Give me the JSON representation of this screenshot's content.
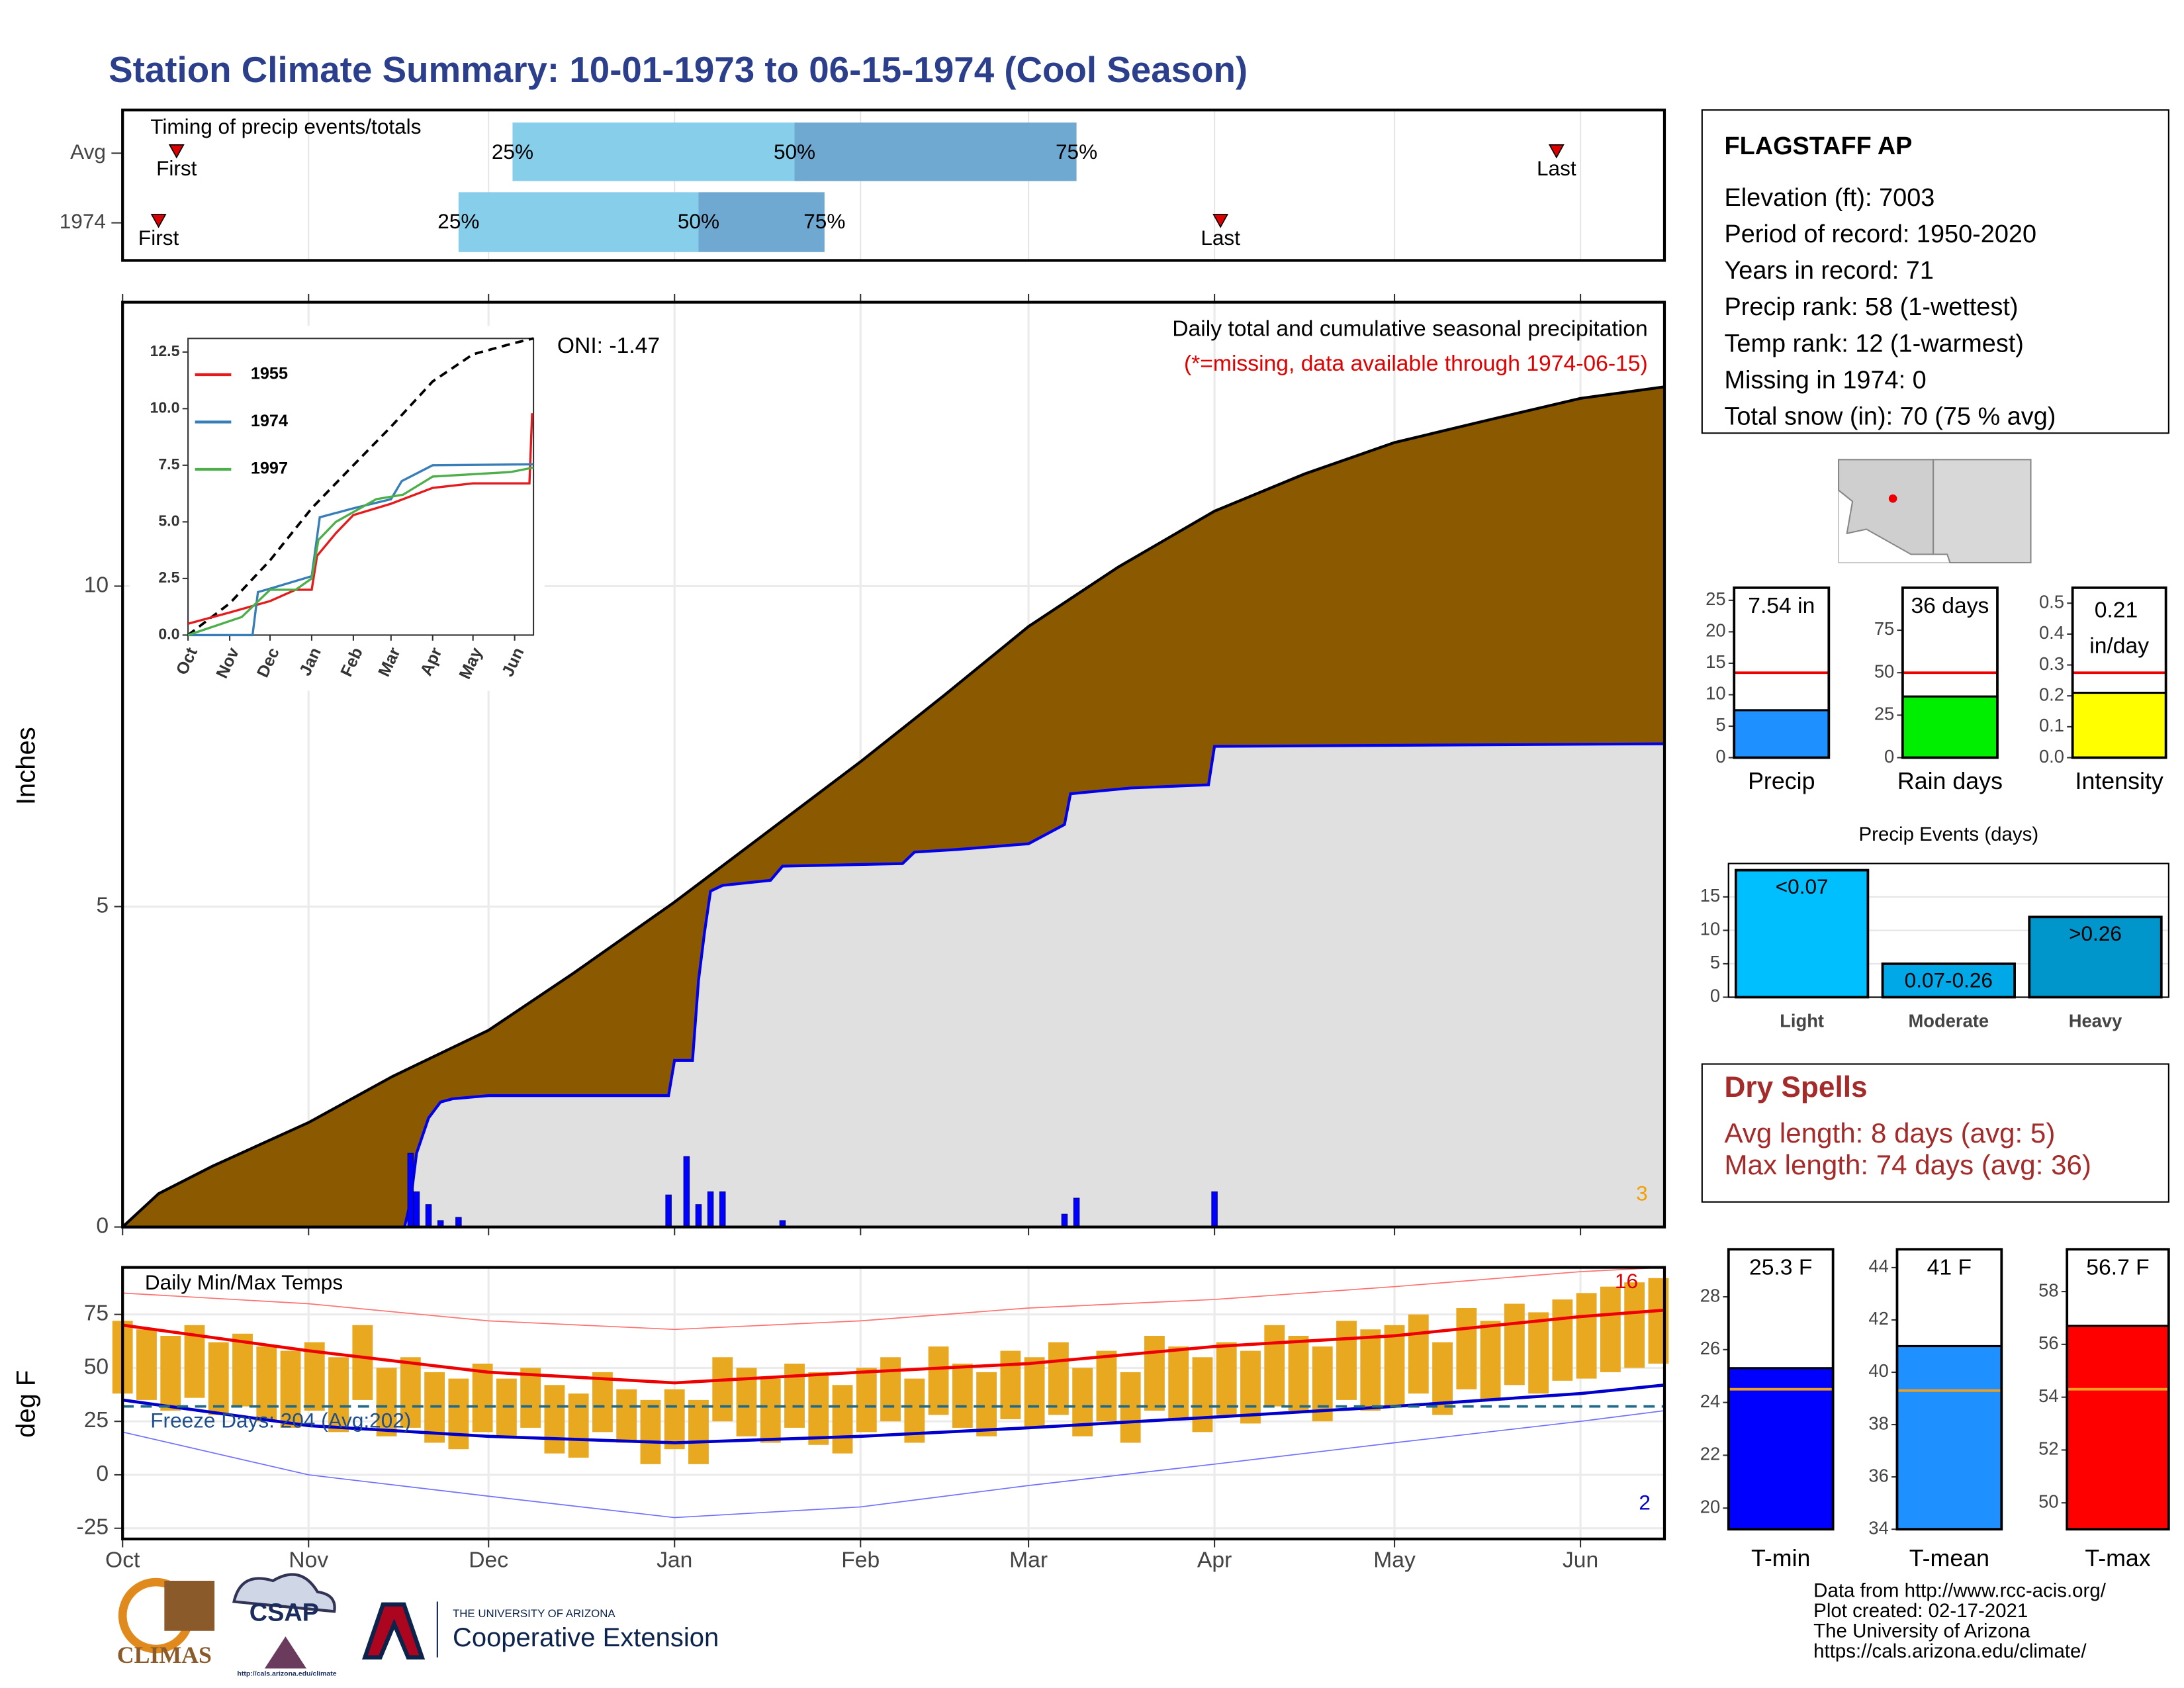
{
  "title": "Station Climate Summary: 10-01-1973 to 06-15-1974 (Cool Season)",
  "timing": {
    "title": "Timing of precip events/totals",
    "xlim": [
      0,
      257
    ],
    "xticks": [
      0,
      31,
      61,
      92,
      123,
      151,
      182,
      212,
      243
    ],
    "colors": {
      "low": "#87ceeb",
      "high": "#6fa8d0",
      "marker": "#dd0000"
    },
    "marker_labels": {
      "first": "First",
      "last": "Last",
      "p25": "25%",
      "p50": "50%",
      "p75": "75%"
    },
    "rows": [
      {
        "label": "Avg",
        "first": 9,
        "p25": 65,
        "p50": 112,
        "p75": 159,
        "last": 239
      },
      {
        "label": "1974",
        "first": 6,
        "p25": 56,
        "p50": 96,
        "p75": 117,
        "last": 183
      }
    ]
  },
  "chart_data": [
    {
      "type": "area",
      "ylabel": "Inches",
      "annotation": "Daily total and cumulative seasonal precipitation",
      "note": "(*=missing, data available through 1974-06-15)",
      "oni": "ONI: -1.47",
      "corner_label": "3",
      "xlim": [
        0,
        257
      ],
      "ylim": [
        0,
        14.43
      ],
      "xticks": [
        0,
        31,
        61,
        92,
        123,
        151,
        182,
        212,
        243
      ],
      "yticks": [
        0,
        5,
        10
      ],
      "grid": true,
      "series": [
        {
          "color": "#8b5a00",
          "line": "#000000",
          "x": [
            0,
            6,
            15,
            31,
            45,
            61,
            75,
            92,
            108,
            123,
            137,
            151,
            166,
            182,
            197,
            212,
            228,
            243,
            257
          ],
          "values": [
            0,
            0.52,
            0.95,
            1.63,
            2.35,
            3.07,
            3.95,
            5.07,
            6.2,
            7.26,
            8.3,
            9.37,
            10.3,
            11.17,
            11.75,
            12.24,
            12.6,
            12.93,
            13.11
          ]
        },
        {
          "color": "#e0e0e0",
          "line": "#0000ee",
          "x": [
            0,
            47,
            48,
            49,
            51,
            53,
            55,
            61,
            91,
            92,
            95,
            96,
            97,
            98,
            100,
            108,
            110,
            130,
            132,
            139,
            151,
            157,
            158,
            168,
            181,
            182,
            257
          ],
          "values": [
            0,
            0,
            0.4,
            1.15,
            1.7,
            1.95,
            2.0,
            2.05,
            2.05,
            2.6,
            2.6,
            3.85,
            4.6,
            5.24,
            5.33,
            5.41,
            5.63,
            5.67,
            5.85,
            5.89,
            5.98,
            6.28,
            6.76,
            6.85,
            6.9,
            7.5,
            7.54
          ]
        }
      ],
      "daily": {
        "color": "#0000ff",
        "x": [
          48,
          49,
          51,
          53,
          56,
          91,
          94,
          96,
          98,
          100,
          110,
          157,
          159,
          182
        ],
        "values": [
          1.15,
          0.55,
          0.35,
          0.1,
          0.15,
          0.5,
          1.1,
          0.35,
          0.55,
          0.55,
          0.1,
          0.2,
          0.45,
          0.55
        ]
      }
    },
    {
      "type": "line",
      "xlim": [
        0,
        257
      ],
      "ylim": [
        0,
        13.1
      ],
      "xticks": [
        {
          "value": 0,
          "label": "Oct"
        },
        {
          "value": 31,
          "label": "Nov"
        },
        {
          "value": 61,
          "label": "Dec"
        },
        {
          "value": 92,
          "label": "Jan"
        },
        {
          "value": 123,
          "label": "Feb"
        },
        {
          "value": 151,
          "label": "Mar"
        },
        {
          "value": 182,
          "label": "Apr"
        },
        {
          "value": 212,
          "label": "May"
        },
        {
          "value": 243,
          "label": "Jun"
        }
      ],
      "yticks": [
        {
          "value": 0,
          "label": "0.0"
        },
        2.5,
        {
          "value": 5,
          "label": "5.0"
        },
        7.5,
        {
          "value": 10,
          "label": "10.0"
        },
        12.5
      ],
      "avg": {
        "color": "#000000",
        "x": [
          0,
          31,
          61,
          92,
          123,
          151,
          182,
          212,
          243,
          257
        ],
        "values": [
          0,
          1.4,
          3.3,
          5.6,
          7.5,
          9.2,
          11.2,
          12.4,
          12.9,
          13.1
        ]
      },
      "series": [
        {
          "name": "1955",
          "color": "#e41a1c",
          "x": [
            0,
            31,
            61,
            80,
            92,
            96,
            110,
            123,
            151,
            182,
            212,
            243,
            254,
            256
          ],
          "values": [
            0.5,
            1.0,
            1.5,
            2.0,
            2.0,
            3.5,
            4.5,
            5.3,
            5.8,
            6.5,
            6.7,
            6.7,
            6.7,
            9.8
          ]
        },
        {
          "name": "1974",
          "color": "#377eb8",
          "x": [
            0,
            48,
            52,
            61,
            92,
            98,
            123,
            151,
            159,
            182,
            257
          ],
          "values": [
            0,
            0,
            1.9,
            2.05,
            2.6,
            5.2,
            5.6,
            6.0,
            6.8,
            7.5,
            7.54
          ]
        },
        {
          "name": "1997",
          "color": "#4daf4a",
          "x": [
            0,
            20,
            40,
            61,
            80,
            92,
            97,
            110,
            140,
            160,
            182,
            240,
            257
          ],
          "values": [
            0,
            0.4,
            0.8,
            2.0,
            2.0,
            2.5,
            4.2,
            5.0,
            6.0,
            6.2,
            7.0,
            7.2,
            7.4
          ]
        }
      ]
    },
    {
      "type": "range-bar",
      "title": "Daily Min/Max Temps",
      "ylabel": "deg F",
      "freeze_label": "Freeze Days: 204 (Avg:202)",
      "high_count": "16",
      "low_count": "2",
      "xlim": [
        0,
        257
      ],
      "ylim": [
        -30,
        97
      ],
      "xticks": [
        {
          "value": 0,
          "label": "Oct"
        },
        {
          "value": 31,
          "label": "Nov"
        },
        {
          "value": 61,
          "label": "Dec"
        },
        {
          "value": 92,
          "label": "Jan"
        },
        {
          "value": 123,
          "label": "Feb"
        },
        {
          "value": 151,
          "label": "Mar"
        },
        {
          "value": 182,
          "label": "Apr"
        },
        {
          "value": 212,
          "label": "May"
        },
        {
          "value": 243,
          "label": "Jun"
        }
      ],
      "yticks": [
        -25,
        0,
        25,
        50,
        75
      ],
      "grid": true,
      "freeze": 32,
      "color": "#e8a820",
      "x": [
        0,
        4,
        8,
        12,
        16,
        20,
        24,
        28,
        32,
        36,
        40,
        44,
        48,
        52,
        56,
        60,
        64,
        68,
        72,
        76,
        80,
        84,
        88,
        92,
        96,
        100,
        104,
        108,
        112,
        116,
        120,
        124,
        128,
        132,
        136,
        140,
        144,
        148,
        152,
        156,
        160,
        164,
        168,
        172,
        176,
        180,
        184,
        188,
        192,
        196,
        200,
        204,
        208,
        212,
        216,
        220,
        224,
        228,
        232,
        236,
        240,
        244,
        248,
        252,
        256
      ],
      "max": [
        72,
        68,
        65,
        70,
        62,
        66,
        60,
        58,
        62,
        55,
        70,
        50,
        55,
        48,
        45,
        52,
        45,
        50,
        42,
        38,
        48,
        40,
        35,
        40,
        35,
        55,
        50,
        45,
        52,
        48,
        42,
        50,
        55,
        45,
        60,
        52,
        48,
        58,
        55,
        62,
        50,
        58,
        48,
        65,
        60,
        55,
        62,
        58,
        70,
        65,
        60,
        72,
        68,
        70,
        75,
        62,
        78,
        72,
        80,
        76,
        82,
        85,
        88,
        90,
        92
      ],
      "min": [
        38,
        35,
        30,
        36,
        28,
        32,
        25,
        22,
        30,
        20,
        35,
        18,
        22,
        15,
        12,
        20,
        18,
        22,
        10,
        8,
        20,
        15,
        5,
        12,
        5,
        25,
        18,
        15,
        22,
        14,
        10,
        20,
        25,
        15,
        28,
        22,
        18,
        26,
        22,
        28,
        18,
        25,
        15,
        30,
        26,
        20,
        28,
        24,
        32,
        30,
        25,
        35,
        30,
        32,
        38,
        28,
        40,
        35,
        42,
        38,
        44,
        45,
        48,
        50,
        52
      ],
      "normals_x": [
        0,
        31,
        61,
        92,
        123,
        151,
        182,
        212,
        243,
        257
      ],
      "normal_max": [
        70,
        58,
        48,
        43,
        48,
        52,
        60,
        65,
        74,
        77
      ],
      "normal_min": [
        35,
        23,
        18,
        15,
        18,
        22,
        27,
        32,
        38,
        42
      ],
      "record_max": [
        85,
        80,
        72,
        68,
        72,
        78,
        82,
        88,
        95,
        97
      ],
      "record_min": [
        20,
        0,
        -10,
        -20,
        -15,
        -5,
        5,
        15,
        25,
        30
      ]
    },
    {
      "type": "bar",
      "categories": [
        "Precip"
      ],
      "values": [
        7.54
      ],
      "value_labels": [
        "7.54 in"
      ],
      "reference": 13.5,
      "color": "#1e90ff",
      "ylim": [
        0,
        27
      ],
      "yticks": [
        0,
        5,
        10,
        15,
        20,
        25
      ]
    },
    {
      "type": "bar",
      "categories": [
        "Rain days"
      ],
      "values": [
        36
      ],
      "value_labels": [
        "36 days"
      ],
      "reference": 50,
      "color": "#00ee00",
      "ylim": [
        0,
        100
      ],
      "yticks": [
        0,
        25,
        50,
        75
      ]
    },
    {
      "type": "bar",
      "categories": [
        "Intensity"
      ],
      "values": [
        0.21
      ],
      "value_labels": [
        "0.21 in/day"
      ],
      "reference": 0.275,
      "color": "#ffff00",
      "ylim": [
        0,
        0.55
      ],
      "yticks": [
        {
          "value": 0,
          "label": "0.0"
        },
        0.1,
        0.2,
        0.3,
        0.4,
        0.5
      ]
    },
    {
      "type": "bar",
      "title": "Precip Events (days)",
      "categories": [
        "Light",
        "Moderate",
        "Heavy"
      ],
      "values": [
        19,
        5,
        12
      ],
      "value_labels": [
        "<0.07",
        "0.07-0.26",
        ">0.26"
      ],
      "colors": [
        "#00bfff",
        "#00a8e8",
        "#0096cc"
      ],
      "ylim": [
        0,
        20
      ],
      "yticks": [
        0,
        5,
        10,
        15
      ],
      "grid": true
    },
    {
      "type": "bar",
      "categories": [
        "T-min"
      ],
      "values": [
        25.3
      ],
      "value_labels": [
        "25.3 F"
      ],
      "reference": 24.5,
      "color": "#0000ff",
      "ylim": [
        19.2,
        29.8
      ],
      "yticks": [
        20,
        22,
        24,
        26,
        28
      ]
    },
    {
      "type": "bar",
      "categories": [
        "T-mean"
      ],
      "values": [
        41
      ],
      "value_labels": [
        "41 F"
      ],
      "reference": 39.3,
      "color": "#1e90ff",
      "ylim": [
        34,
        44.7
      ],
      "yticks": [
        34,
        36,
        38,
        40,
        42,
        44
      ]
    },
    {
      "type": "bar",
      "categories": [
        "T-max"
      ],
      "values": [
        56.7
      ],
      "value_labels": [
        "56.7 F"
      ],
      "reference": 54.3,
      "color": "#ff0000",
      "ylim": [
        49,
        59.6
      ],
      "yticks": [
        50,
        52,
        54,
        56,
        58
      ]
    }
  ],
  "station": {
    "name": "FLAGSTAFF AP",
    "lines": [
      "Elevation (ft): 7003",
      "Period of record: 1950-2020",
      "Years in record: 71",
      "Precip rank: 58 (1-wettest)",
      "Temp rank: 12 (1-warmest)",
      "Missing in 1974: 0",
      "Total snow (in): 70 (75 % avg)"
    ]
  },
  "dry_spells": {
    "title": "Dry Spells",
    "lines": [
      "Avg length: 8 days (avg: 5)",
      "Max length: 74 days (avg: 36)"
    ]
  },
  "credits": [
    "Data from http://www.rcc-acis.org/",
    "Plot created: 02-17-2021",
    "The University of Arizona",
    "https://cals.arizona.edu/climate/"
  ],
  "logos": {
    "climas": "CLIMAS",
    "csap": "CSAP",
    "csap_url": "http://cals.arizona.edu/climate",
    "ua": "THE UNIVERSITY OF ARIZONA",
    "coop": "Cooperative Extension"
  }
}
